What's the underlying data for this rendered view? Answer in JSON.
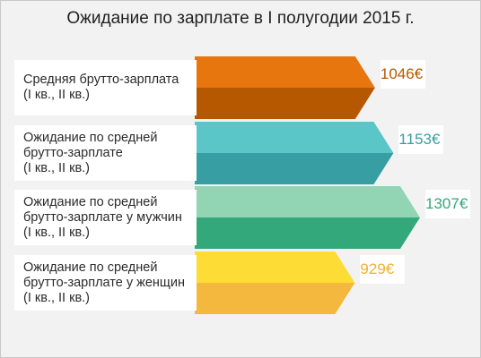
{
  "title": "Ожидание по зарплате в I полугодии 2015 г.",
  "chart_data": {
    "type": "bar",
    "orientation": "horizontal",
    "unit": "€",
    "categories": [
      "Средняя брутто-зарплата\n(I кв., II кв.)",
      "Ожидание по средней\nбрутто-зарплате\n(I кв., II кв.)",
      "Ожидание по средней\nбрутто-зарплате у мужчин\n(I кв., II кв.)",
      "Ожидание по средней\nбрутто-зарплате у женщин\n(I кв., II кв.)"
    ],
    "values": [
      1046,
      1153,
      1307,
      929
    ],
    "value_labels": [
      "1046€",
      "1153€",
      "1307€",
      "929€"
    ],
    "colors": [
      {
        "top": "#e8760f",
        "bottom": "#b65800",
        "label": "#b65800"
      },
      {
        "top": "#5bc6c8",
        "bottom": "#379ea4",
        "label": "#379ea4"
      },
      {
        "top": "#92d5b4",
        "bottom": "#33a87a",
        "label": "#33a87a"
      },
      {
        "top": "#fddc35",
        "bottom": "#f4b83e",
        "label": "#f0b12f"
      }
    ],
    "grid": false,
    "legend": "none"
  }
}
